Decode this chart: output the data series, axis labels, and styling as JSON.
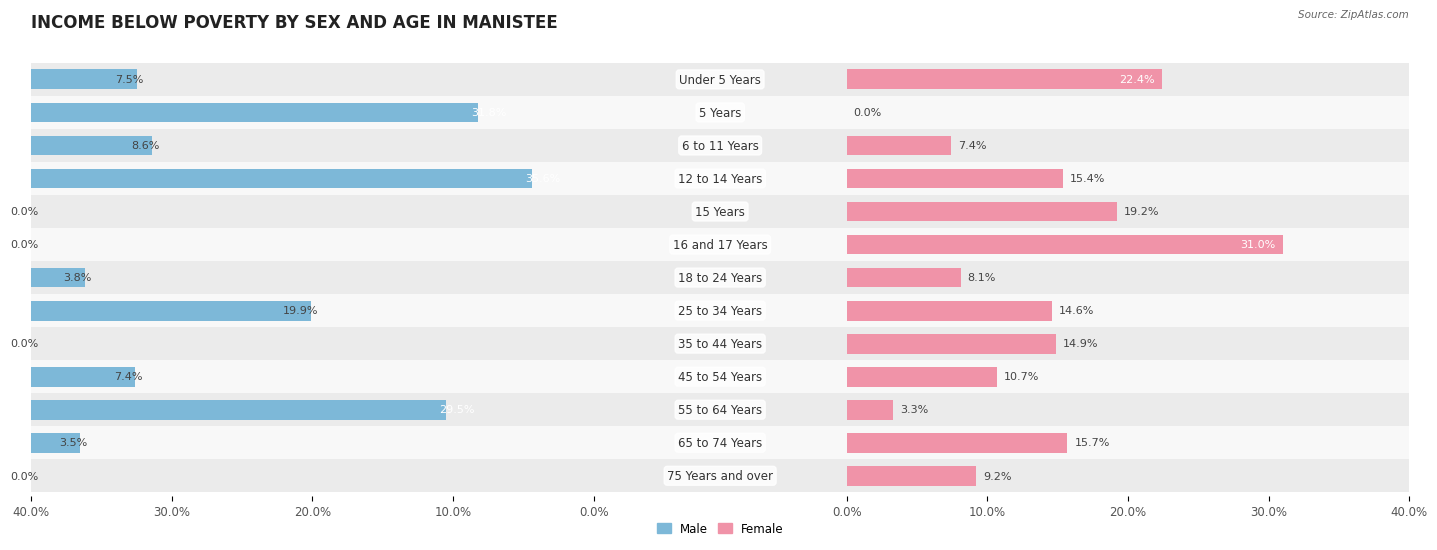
{
  "title": "INCOME BELOW POVERTY BY SEX AND AGE IN MANISTEE",
  "source": "Source: ZipAtlas.com",
  "categories": [
    "Under 5 Years",
    "5 Years",
    "6 to 11 Years",
    "12 to 14 Years",
    "15 Years",
    "16 and 17 Years",
    "18 to 24 Years",
    "25 to 34 Years",
    "35 to 44 Years",
    "45 to 54 Years",
    "55 to 64 Years",
    "65 to 74 Years",
    "75 Years and over"
  ],
  "male": [
    7.5,
    31.8,
    8.6,
    35.6,
    0.0,
    0.0,
    3.8,
    19.9,
    0.0,
    7.4,
    29.5,
    3.5,
    0.0
  ],
  "female": [
    22.4,
    0.0,
    7.4,
    15.4,
    19.2,
    31.0,
    8.1,
    14.6,
    14.9,
    10.7,
    3.3,
    15.7,
    9.2
  ],
  "male_color": "#7db8d8",
  "female_color": "#f093a8",
  "male_color_dark": "#5a9ec2",
  "female_color_dark": "#e8728a",
  "male_label": "Male",
  "female_label": "Female",
  "axis_limit": 40.0,
  "row_bg_even": "#ebebeb",
  "row_bg_odd": "#f8f8f8",
  "title_fontsize": 12,
  "label_fontsize": 8.5,
  "tick_fontsize": 8.5,
  "value_fontsize": 8.0
}
